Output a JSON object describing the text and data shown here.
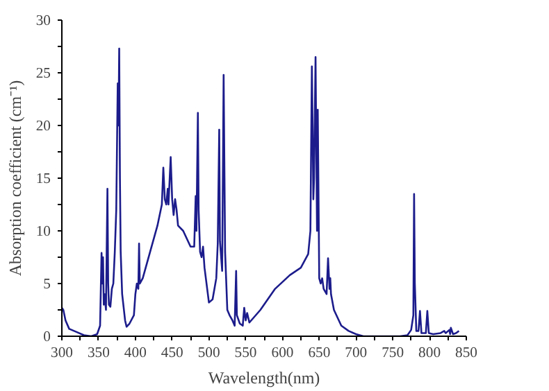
{
  "chart_data": {
    "type": "line",
    "xlabel": "Wavelength(nm)",
    "ylabel": "Absorption coefficient (cm⁻¹)",
    "x": [
      300,
      302,
      305,
      310,
      320,
      330,
      340,
      348,
      352,
      354,
      355,
      356,
      357,
      358,
      360,
      362,
      363,
      364,
      366,
      368,
      370,
      372,
      374,
      376,
      377,
      378,
      379,
      380,
      382,
      386,
      388,
      392,
      398,
      400,
      402,
      404,
      405,
      406,
      410,
      420,
      430,
      436,
      438,
      440,
      442,
      444,
      445,
      448,
      450,
      452,
      454,
      456,
      458,
      465,
      475,
      480,
      482,
      483,
      485,
      486,
      488,
      490,
      492,
      494,
      500,
      505,
      510,
      512,
      514,
      515,
      518,
      520,
      522,
      525,
      528,
      532,
      535,
      537,
      538,
      542,
      546,
      548,
      550,
      552,
      555,
      570,
      590,
      610,
      625,
      635,
      638,
      640,
      641,
      642,
      643,
      645,
      646,
      647,
      648,
      650,
      652,
      654,
      656,
      660,
      662,
      664,
      665,
      666,
      670,
      680,
      690,
      700,
      710,
      760,
      770,
      775,
      778,
      779,
      780,
      782,
      785,
      787,
      789,
      795,
      797,
      799,
      805,
      815,
      820,
      822,
      827,
      828,
      829,
      832,
      836,
      840
    ],
    "series": [
      {
        "color": "#1c1c8c",
        "values": [
          2.7,
          2.5,
          1.5,
          0.7,
          0.4,
          0.1,
          0.0,
          0.2,
          1.0,
          7.9,
          5,
          7.5,
          3,
          4,
          2.5,
          14,
          5,
          3,
          2.8,
          4.5,
          5,
          8,
          12,
          24,
          20,
          27.3,
          15,
          8,
          4,
          1.5,
          0.9,
          1.2,
          2,
          4,
          5,
          4.5,
          8.8,
          5,
          5.5,
          8,
          10.5,
          12.5,
          16,
          13,
          12.5,
          14,
          12.5,
          17,
          13,
          11.5,
          13,
          12,
          10.5,
          10,
          8.5,
          8.5,
          13.3,
          10,
          21.2,
          12,
          8,
          7.5,
          8.5,
          6.5,
          3.2,
          3.5,
          5.5,
          8.8,
          19.6,
          9,
          6.2,
          24.8,
          8,
          2.5,
          2,
          1.5,
          1.0,
          6.2,
          2,
          1.2,
          1.0,
          2.7,
          1.5,
          2.2,
          1.3,
          2.5,
          4.5,
          5.8,
          6.5,
          7.8,
          10,
          25.6,
          20,
          13,
          15,
          26.5,
          18,
          10,
          21.5,
          5.5,
          5,
          5.5,
          4.5,
          4,
          7.4,
          4.5,
          5.5,
          4,
          2.5,
          1.0,
          0.5,
          0.2,
          0.0,
          0.0,
          0.1,
          0.6,
          2,
          13.5,
          5,
          0.5,
          0.5,
          2.4,
          0.3,
          0.3,
          2.4,
          0.3,
          0.2,
          0.3,
          0.5,
          0.3,
          0.6,
          0.2,
          0.8,
          0.2,
          0.3,
          0.5
        ]
      }
    ],
    "xlim": [
      300,
      850
    ],
    "ylim": [
      0,
      30
    ],
    "xticks": [
      300,
      {
        "value": 325,
        "label": null
      },
      350,
      {
        "value": 375,
        "label": null
      },
      400,
      {
        "value": 425,
        "label": null
      },
      450,
      {
        "value": 475,
        "label": null
      },
      500,
      {
        "value": 525,
        "label": null
      },
      550,
      {
        "value": 575,
        "label": null
      },
      600,
      {
        "value": 625,
        "label": null
      },
      650,
      {
        "value": 675,
        "label": null
      },
      700,
      {
        "value": 725,
        "label": null
      },
      750,
      {
        "value": 775,
        "label": null
      },
      800,
      {
        "value": 825,
        "label": null
      },
      850
    ],
    "yticks": [
      0,
      {
        "value": 2.5,
        "label": null
      },
      5,
      {
        "value": 7.5,
        "label": null
      },
      10,
      {
        "value": 12.5,
        "label": null
      },
      15,
      {
        "value": 17.5,
        "label": null
      },
      20,
      {
        "value": 22.5,
        "label": null
      },
      25,
      {
        "value": 27.5,
        "label": null
      },
      30
    ],
    "grid": false,
    "marker": "none",
    "line_style": "solid"
  }
}
